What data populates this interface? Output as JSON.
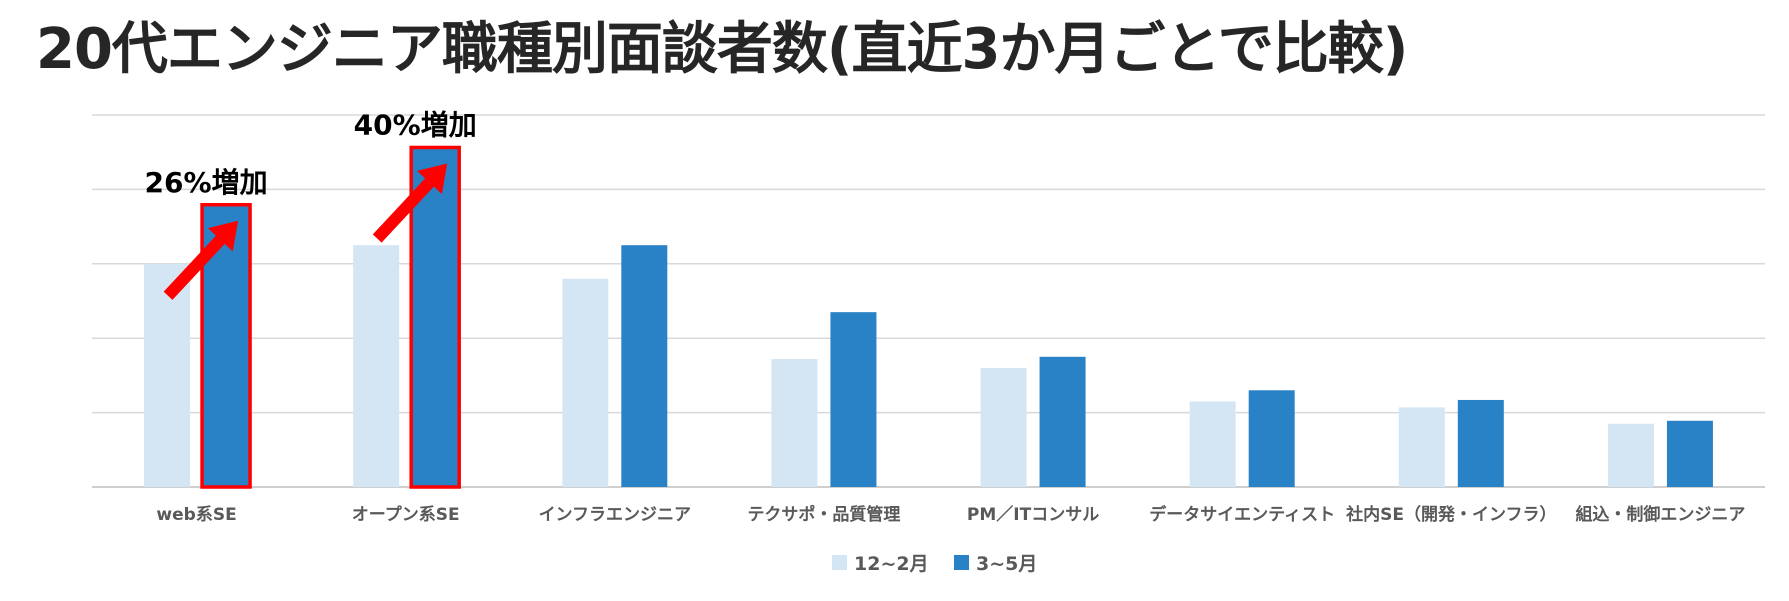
{
  "title": "20代エンジニア職種別面談者数(直近3か月ごとで比較)",
  "chart_data": {
    "type": "bar",
    "categories": [
      "web系SE",
      "オープン系SE",
      "インフラエンジニア",
      "テクサポ・品質管理",
      "PM／ITコンサル",
      "データサイエンティスト",
      "社内SE（開発・インフラ）",
      "組込・制御エンジニア"
    ],
    "series": [
      {
        "name": "12~2月",
        "color": "#d4e6f4",
        "values": [
          3.0,
          3.25,
          2.8,
          1.72,
          1.6,
          1.15,
          1.07,
          0.85
        ]
      },
      {
        "name": "3~5月",
        "color": "#2a82c6",
        "values": [
          3.78,
          4.55,
          3.25,
          2.35,
          1.75,
          1.3,
          1.17,
          0.89
        ]
      }
    ],
    "ylim": [
      0,
      5
    ],
    "grid": true,
    "legend": "bottom",
    "annotations": [
      {
        "text": "26%増加",
        "category": "web系SE",
        "color": "#ff0000"
      },
      {
        "text": "40%増加",
        "category": "オープン系SE",
        "color": "#ff0000"
      }
    ]
  }
}
